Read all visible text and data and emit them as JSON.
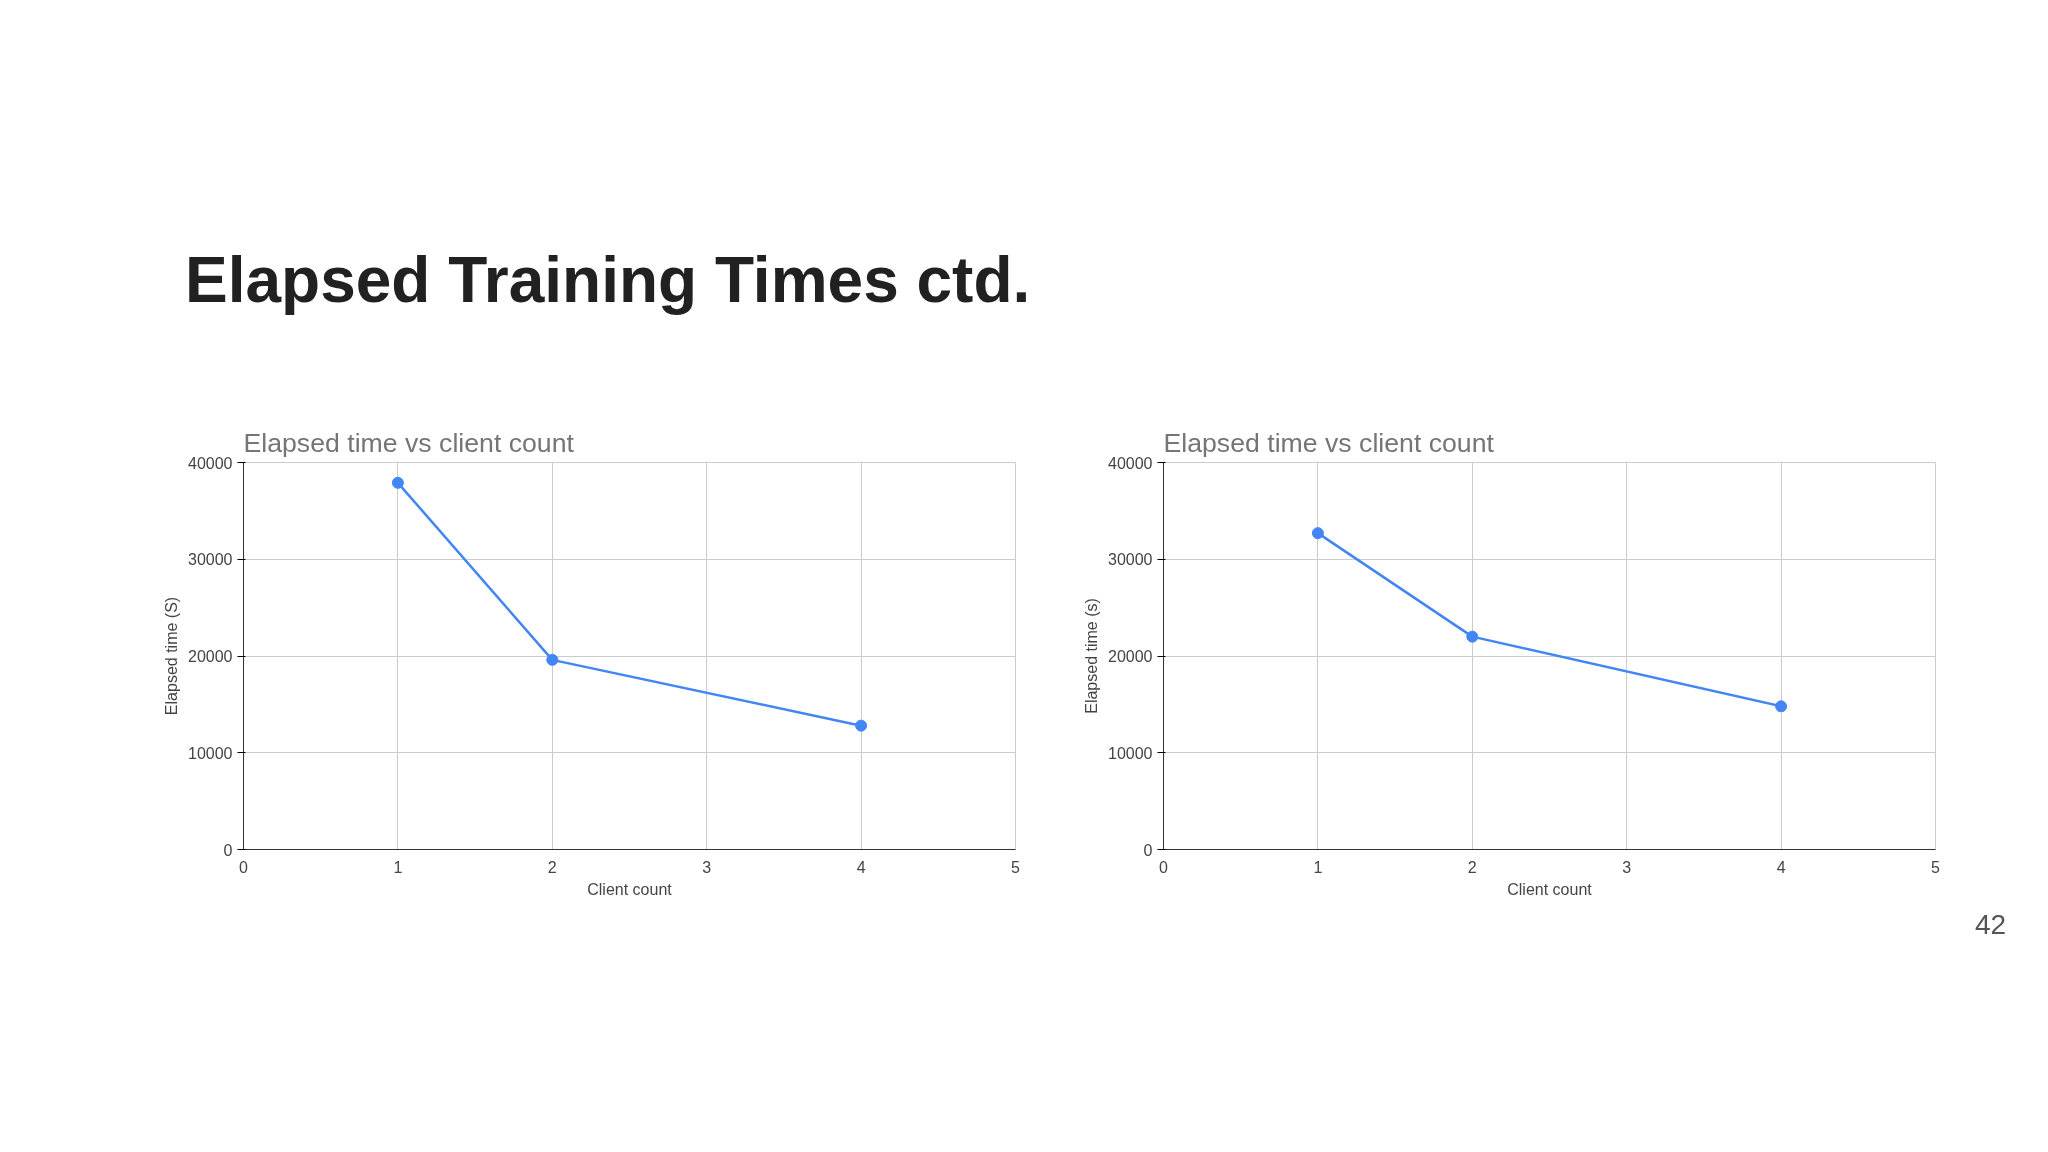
{
  "chart_data": [
    {
      "type": "line",
      "title": "Elapsed time vs client count",
      "xlabel": "Client count",
      "ylabel": "Elapsed time (S)",
      "annotations": [
        "Elapsed Training Times ctd."
      ],
      "series": [
        {
          "color": "#4285f4",
          "x": [
            1,
            2,
            4
          ],
          "values": [
            37900,
            19600,
            12800
          ]
        }
      ],
      "xlim": [
        0,
        5
      ],
      "xticks": [
        0,
        1,
        2,
        3,
        4,
        5
      ],
      "ylim": [
        0,
        40000
      ],
      "yticks": [
        0,
        10000,
        20000,
        30000,
        40000
      ],
      "grid": true,
      "marker": "circle",
      "line_style": "solid"
    },
    {
      "type": "line",
      "title": "Elapsed time vs client count",
      "xlabel": "Client count",
      "ylabel": "Elapsed time (s)",
      "annotations": [
        "42"
      ],
      "series": [
        {
          "color": "#4285f4",
          "x": [
            1,
            2,
            4
          ],
          "values": [
            32700,
            22000,
            14800
          ]
        }
      ],
      "xlim": [
        0,
        5
      ],
      "xticks": [
        0,
        1,
        2,
        3,
        4,
        5
      ],
      "ylim": [
        0,
        40000
      ],
      "yticks": [
        0,
        10000,
        20000,
        30000,
        40000
      ],
      "grid": true,
      "marker": "circle",
      "line_style": "solid"
    }
  ]
}
